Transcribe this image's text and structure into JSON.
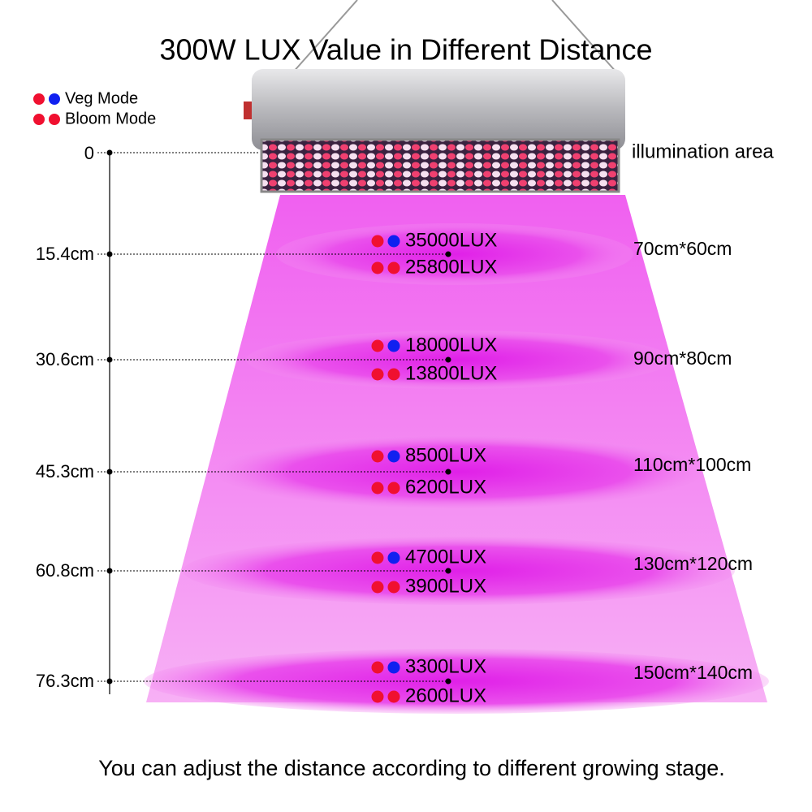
{
  "title": "300W LUX Value in Different Distance",
  "legend": {
    "veg": "Veg Mode",
    "bloom": "Bloom Mode"
  },
  "area_header": "illumination area",
  "zero_label": "0",
  "levels": [
    {
      "distance": "15.4cm",
      "veg": "35000LUX",
      "bloom": "25800LUX",
      "area": "70cm*60cm"
    },
    {
      "distance": "30.6cm",
      "veg": "18000LUX",
      "bloom": "13800LUX",
      "area": "90cm*80cm"
    },
    {
      "distance": "45.3cm",
      "veg": "8500LUX",
      "bloom": "6200LUX",
      "area": "110cm*100cm"
    },
    {
      "distance": "60.8cm",
      "veg": "4700LUX",
      "bloom": "3900LUX",
      "area": "130cm*120cm"
    },
    {
      "distance": "76.3cm",
      "veg": "3300LUX",
      "bloom": "2600LUX",
      "area": "150cm*140cm"
    }
  ],
  "footer": "You can adjust the distance according to different growing stage."
}
